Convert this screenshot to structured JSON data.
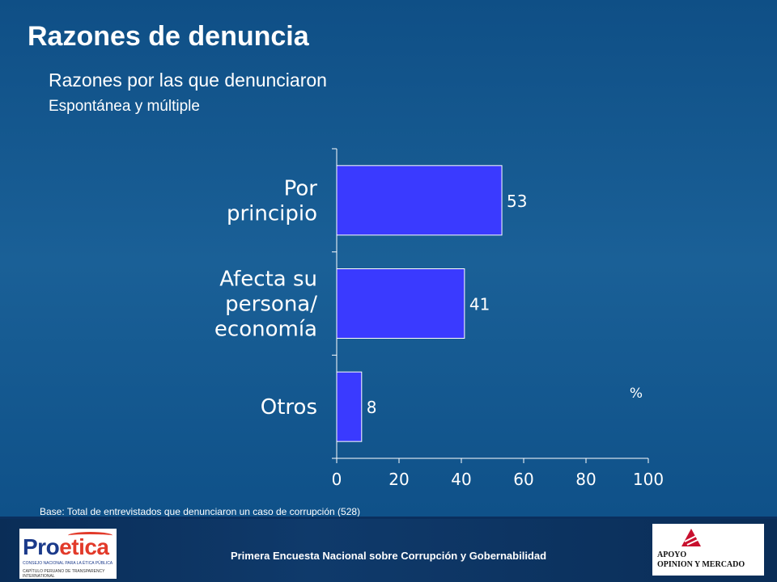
{
  "title": "Razones de denuncia",
  "subtitle": "Razones por las que denunciaron",
  "subsubtitle": "Espontánea y múltiple",
  "unit_label": "%",
  "base_note": "Base: Total de entrevistados que denunciaron un caso de corrupción (528)",
  "footer_text": "Primera Encuesta Nacional sobre Corrupción y Gobernabilidad",
  "logos": {
    "left_brand_a": "Pro",
    "left_brand_b": "etica",
    "left_tagline": "CONSEJO NACIONAL PARA LA ÉTICA PÚBLICA",
    "left_ti": "CAPÍTULO PERUANO DE TRANSPARENCY INTERNATIONAL",
    "right_line1": "APOYO",
    "right_line2": "OPINION Y MERCADO"
  },
  "colors": {
    "bar": "#3a3aff",
    "background": "#15568d"
  },
  "chart_data": {
    "type": "bar",
    "orientation": "horizontal",
    "categories": [
      [
        "Por",
        "principio"
      ],
      [
        "Afecta su",
        "persona/",
        "economía"
      ],
      [
        "Otros"
      ]
    ],
    "values": [
      53,
      41,
      8
    ],
    "data_labels": [
      "53",
      "41",
      "8"
    ],
    "xlim": [
      0,
      100
    ],
    "xticks": [
      0,
      20,
      40,
      60,
      80,
      100
    ],
    "grid": false,
    "legend": "none"
  }
}
